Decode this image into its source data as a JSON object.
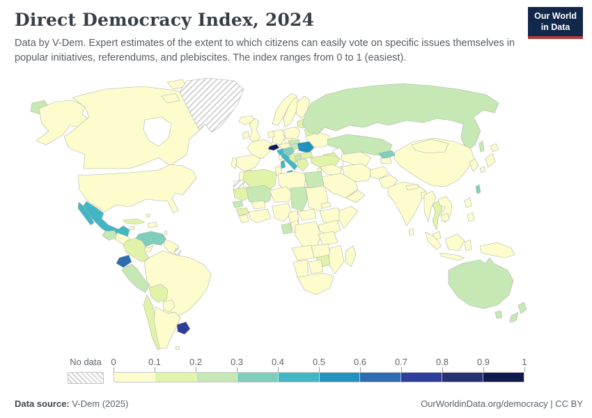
{
  "header": {
    "title": "Direct Democracy Index, 2024",
    "subtitle": "Data by V-Dem. Expert estimates of the extent to which citizens can easily vote on specific issues themselves in popular initiatives, referendums, and plebiscites. The index ranges from 0 to 1 (easiest).",
    "logo": {
      "line1": "Our World",
      "line2": "in Data",
      "bg_color": "#12284b",
      "accent_color": "#b63b3b"
    }
  },
  "chart_data": {
    "type": "choropleth_map",
    "title": "Direct Democracy Index, 2024",
    "value_range": [
      0,
      1
    ],
    "legend": {
      "no_data_label": "No data",
      "tick_labels": [
        "0",
        "0.1",
        "0.2",
        "0.3",
        "0.4",
        "0.5",
        "0.6",
        "0.7",
        "0.8",
        "0.9",
        "1"
      ],
      "bin_labels": [
        "0-0.1",
        "0.1-0.2",
        "0.2-0.3",
        "0.3-0.4",
        "0.4-0.5",
        "0.5-0.6",
        "0.6-0.7",
        "0.7-0.8",
        "0.8-0.9",
        "0.9-1"
      ],
      "bin_colors": [
        "#fcfccd",
        "#e1f3a9",
        "#c5e8b4",
        "#7fcdbb",
        "#41b6c4",
        "#2191c0",
        "#2d6cb2",
        "#2e3e9a",
        "#253173",
        "#0e1a4e"
      ]
    },
    "default_bin": 0,
    "land_border_color": "#b3b1a7",
    "no_data_countries": [
      "greenland",
      "western-sahara",
      "french-guiana"
    ],
    "country_values": {
      "russia": 2,
      "kazakhstan": 2,
      "kyrgyzstan": 3,
      "australia": 2,
      "tasmania": 2,
      "new-zealand": 2,
      "mexico": 4,
      "guatemala": 2,
      "cuba": 1,
      "venezuela": 3,
      "colombia": 1,
      "ecuador": 6,
      "peru": 2,
      "bolivia": 1,
      "chile": 1,
      "uruguay": 7,
      "switzerland": 9,
      "italy": 4,
      "sicily": 4,
      "sardinia": 4,
      "croatia": 3,
      "hungary": 2,
      "slovakia": 2,
      "romania": 5,
      "serbia": 1,
      "bulgaria": 1,
      "greece": 1,
      "albania": 2,
      "belarus": 1,
      "baltics": 1,
      "finland": 0,
      "turkey": 1,
      "algeria": 1,
      "egypt": 2,
      "mali": 2,
      "chad": 2,
      "gabon": 2,
      "senegal": 2,
      "guinea": 1,
      "mauritania": 1,
      "zimbabwe": 1,
      "taiwan": 3,
      "thailand": 1,
      "caucasus": 1,
      "uzbek-turkmen": 0
    }
  },
  "footer": {
    "source_label": "Data source:",
    "source_value": " V-Dem (2025)",
    "link": "OurWorldinData.org/democracy",
    "separator": " | ",
    "license": "CC BY"
  }
}
